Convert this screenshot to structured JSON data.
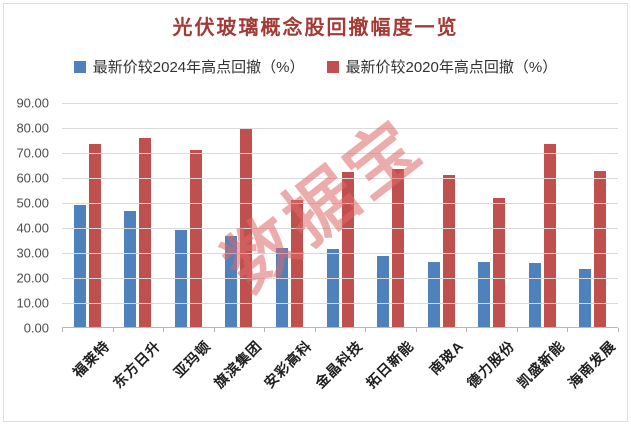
{
  "watermark": {
    "text": "数据宝"
  },
  "colors": {
    "title": "#a23b35",
    "series_blue": "#4F81BD",
    "series_red": "#C0504D",
    "gridline": "#d9d9d9",
    "watermark": "#dd6a6a"
  },
  "chart_data": {
    "type": "bar",
    "title": "光伏玻璃概念股回撤幅度一览",
    "xlabel": "",
    "ylabel": "",
    "ylim": [
      0,
      90
    ],
    "y_ticks": [
      "90.00",
      "80.00",
      "70.00",
      "60.00",
      "50.00",
      "40.00",
      "30.00",
      "20.00",
      "10.00",
      "0.00"
    ],
    "grid": true,
    "legend_position": "top",
    "categories": [
      "福莱特",
      "东方日升",
      "亚玛顿",
      "旗滨集团",
      "安彩高科",
      "金晶科技",
      "拓日新能",
      "南玻A",
      "德力股份",
      "凯盛新能",
      "海南发展"
    ],
    "series": [
      {
        "name": "最新价较2024年高点回撤（%）",
        "color": "#4F81BD",
        "values": [
          49.0,
          46.5,
          38.9,
          36.3,
          31.6,
          31.1,
          28.5,
          26.2,
          26.0,
          25.8,
          23.3
        ]
      },
      {
        "name": "最新价较2020年高点回撤（%）",
        "color": "#C0504D",
        "values": [
          73.2,
          75.6,
          70.9,
          79.2,
          50.9,
          62.2,
          63.3,
          61.0,
          51.7,
          73.4,
          62.4
        ]
      }
    ]
  }
}
